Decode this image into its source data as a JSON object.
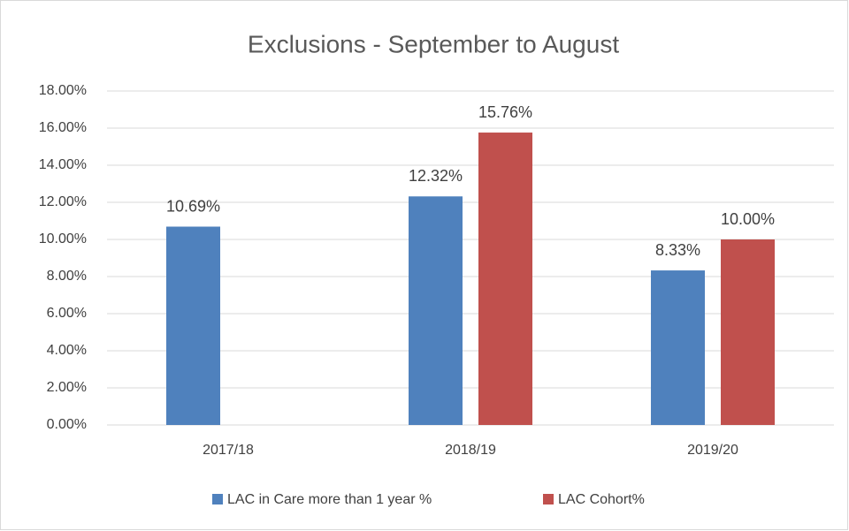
{
  "chart_data": {
    "type": "bar",
    "title": "Exclusions - September to August",
    "categories": [
      "2017/18",
      "2018/19",
      "2019/20"
    ],
    "series": [
      {
        "name": "LAC in Care more than 1 year %",
        "color": "#4f81bd",
        "values": [
          10.69,
          12.32,
          8.33
        ],
        "value_labels": [
          "10.69%",
          "12.32%",
          "8.33%"
        ]
      },
      {
        "name": "LAC Cohort%",
        "color": "#c0504d",
        "values": [
          null,
          15.76,
          10.0
        ],
        "value_labels": [
          null,
          "15.76%",
          "10.00%"
        ]
      }
    ],
    "ylim": [
      0,
      18
    ],
    "yticks": [
      {
        "value": 0,
        "label": "0.00%"
      },
      {
        "value": 2,
        "label": "2.00%"
      },
      {
        "value": 4,
        "label": "4.00%"
      },
      {
        "value": 6,
        "label": "6.00%"
      },
      {
        "value": 8,
        "label": "8.00%"
      },
      {
        "value": 10,
        "label": "10.00%"
      },
      {
        "value": 12,
        "label": "12.00%"
      },
      {
        "value": 14,
        "label": "14.00%"
      },
      {
        "value": 16,
        "label": "16.00%"
      },
      {
        "value": 18,
        "label": "18.00%"
      }
    ],
    "grid": true,
    "legend": "bottom"
  }
}
